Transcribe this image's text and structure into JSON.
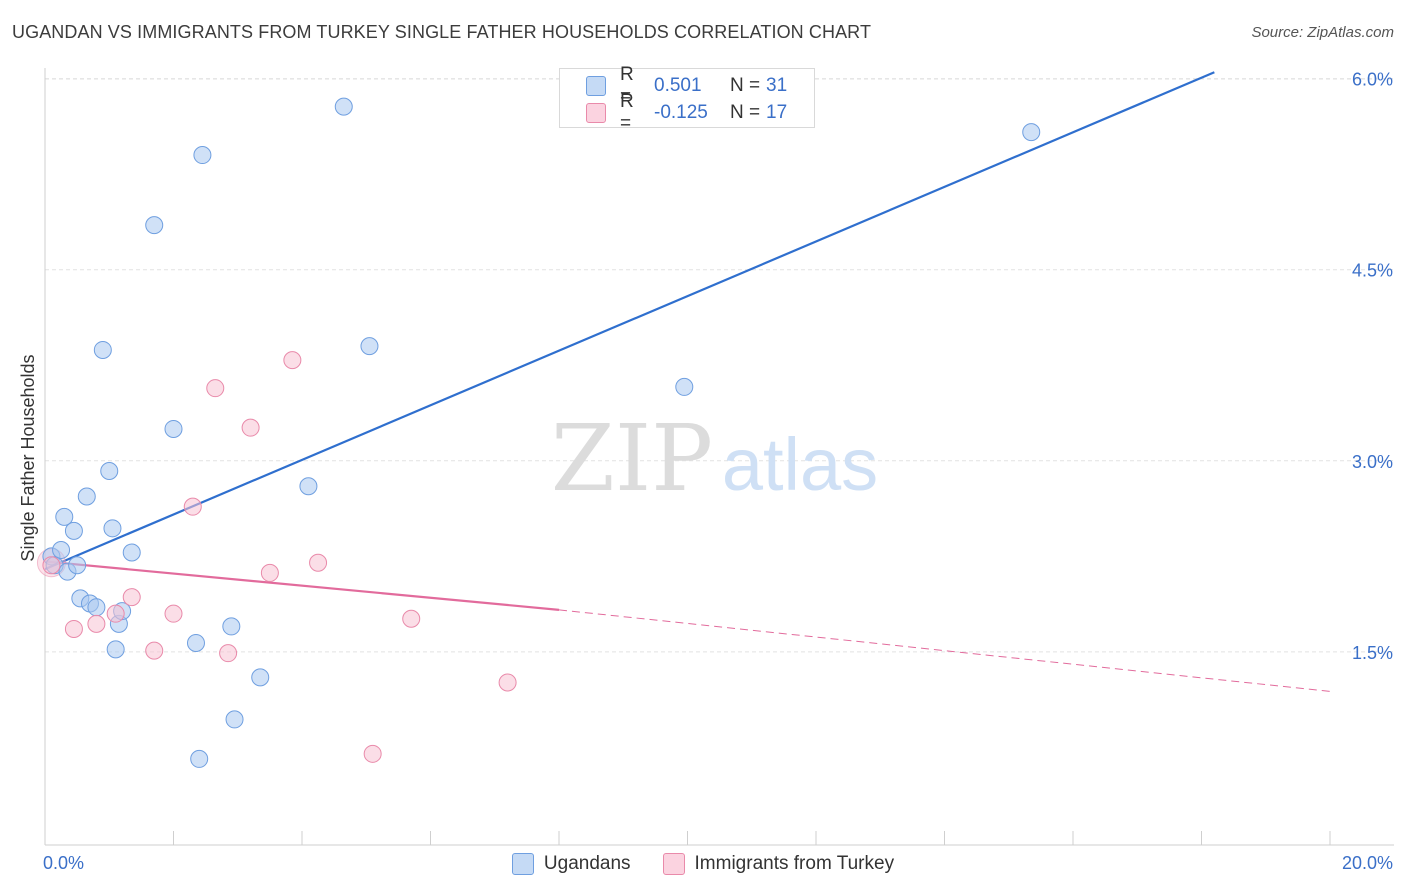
{
  "title": "UGANDAN VS IMMIGRANTS FROM TURKEY SINGLE FATHER HOUSEHOLDS CORRELATION CHART",
  "source": "Source: ZipAtlas.com",
  "watermark": {
    "zip": "ZIP",
    "atlas": "atlas"
  },
  "legend": {
    "items": [
      {
        "r_label": "R =",
        "r_value": "0.501",
        "n_label": "N =",
        "n_value": "31",
        "color": "#a9c8f0",
        "border": "#6f9fe0"
      },
      {
        "r_label": "R =",
        "r_value": "-0.125",
        "n_label": "N =",
        "n_value": "17",
        "color": "#f8c2d3",
        "border": "#e98aaa"
      }
    ]
  },
  "bottom_legend": {
    "ugandans": "Ugandans",
    "turkey": "Immigrants from Turkey"
  },
  "chart_data": {
    "type": "scatter",
    "title": "UGANDAN VS IMMIGRANTS FROM TURKEY SINGLE FATHER HOUSEHOLDS CORRELATION CHART",
    "xlabel": "",
    "ylabel": "Single Father Households",
    "xlim": [
      0,
      20
    ],
    "ylim": [
      0,
      6.2
    ],
    "x_tick_labels": [
      "0.0%",
      "20.0%"
    ],
    "y_ticks": [
      1.5,
      3.0,
      4.5,
      6.0
    ],
    "y_tick_labels": [
      "1.5%",
      "3.0%",
      "4.5%",
      "6.0%"
    ],
    "grid": true,
    "legend_position": "top-center",
    "series": [
      {
        "name": "Ugandans",
        "color": "#a9c8f0",
        "stroke": "#6f9fe0",
        "points": [
          [
            0.1,
            2.25
          ],
          [
            0.15,
            2.18
          ],
          [
            0.25,
            2.3
          ],
          [
            0.3,
            2.56
          ],
          [
            0.35,
            2.13
          ],
          [
            0.45,
            2.45
          ],
          [
            0.5,
            2.18
          ],
          [
            0.55,
            1.92
          ],
          [
            0.65,
            2.72
          ],
          [
            0.7,
            1.88
          ],
          [
            0.8,
            1.85
          ],
          [
            0.9,
            3.87
          ],
          [
            1.0,
            2.92
          ],
          [
            1.05,
            2.47
          ],
          [
            1.1,
            1.52
          ],
          [
            1.15,
            1.72
          ],
          [
            1.2,
            1.82
          ],
          [
            1.35,
            2.28
          ],
          [
            1.7,
            4.85
          ],
          [
            2.0,
            3.25
          ],
          [
            2.35,
            1.57
          ],
          [
            2.4,
            0.66
          ],
          [
            2.45,
            5.4
          ],
          [
            2.9,
            1.7
          ],
          [
            2.95,
            0.97
          ],
          [
            3.35,
            1.3
          ],
          [
            4.1,
            2.8
          ],
          [
            4.65,
            5.78
          ],
          [
            5.05,
            3.9
          ],
          [
            9.95,
            3.58
          ],
          [
            15.35,
            5.58
          ]
        ]
      },
      {
        "name": "Immigrants from Turkey",
        "color": "#f8c2d3",
        "stroke": "#e98aaa",
        "points": [
          [
            0.1,
            2.18
          ],
          [
            0.45,
            1.68
          ],
          [
            0.8,
            1.72
          ],
          [
            1.1,
            1.8
          ],
          [
            1.35,
            1.93
          ],
          [
            1.7,
            1.51
          ],
          [
            2.0,
            1.8
          ],
          [
            2.3,
            2.64
          ],
          [
            2.85,
            1.49
          ],
          [
            2.65,
            3.57
          ],
          [
            3.2,
            3.26
          ],
          [
            3.5,
            2.12
          ],
          [
            3.85,
            3.79
          ],
          [
            4.25,
            2.2
          ],
          [
            5.1,
            0.7
          ],
          [
            5.7,
            1.76
          ],
          [
            7.2,
            1.26
          ]
        ]
      }
    ],
    "trendlines": [
      {
        "series": "Ugandans",
        "x": [
          0.0,
          18.2
        ],
        "y": [
          2.15,
          6.05
        ],
        "style": "solid",
        "color": "#2f6fce"
      },
      {
        "series": "Immigrants from Turkey",
        "x": [
          0.0,
          8.0
        ],
        "y": [
          2.21,
          1.83
        ],
        "style": "solid",
        "color": "#e26b9c"
      },
      {
        "series": "Immigrants from Turkey",
        "x": [
          8.0,
          20.0
        ],
        "y": [
          1.83,
          1.19
        ],
        "style": "dashed",
        "color": "#e26b9c"
      }
    ]
  }
}
